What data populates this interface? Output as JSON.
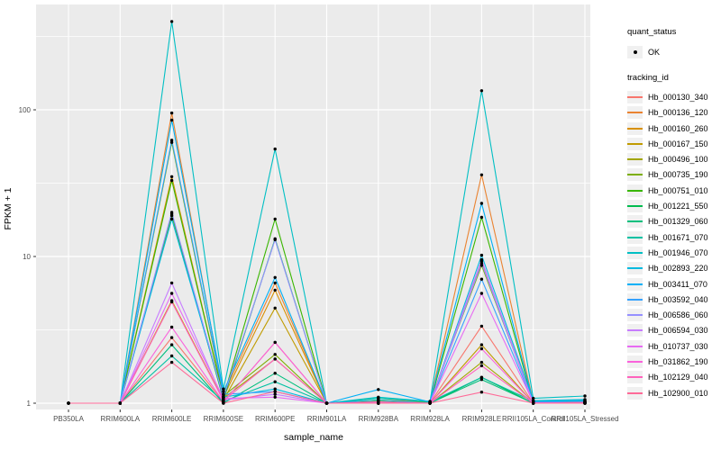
{
  "axes": {
    "x_title": "sample_name",
    "y_title": "FPKM + 1",
    "y_tick_labels": [
      "1",
      "10",
      "100"
    ]
  },
  "legend": {
    "quant_title": "quant_status",
    "quant_items": [
      {
        "label": "OK",
        "marker": "point"
      }
    ],
    "series_title": "tracking_id",
    "position": "right"
  },
  "chart_data": {
    "type": "line",
    "title": "",
    "xlabel": "sample_name",
    "ylabel": "FPKM + 1",
    "y_scale": "log10",
    "ylim": [
      0.93,
      487
    ],
    "grid": "major-and-minor-horizontal, major-vertical",
    "panel_bg": "#ebebeb",
    "gridline_color": "#ffffff",
    "point_color": "#000000",
    "y_major": [
      1,
      10,
      100
    ],
    "y_tick_labels": [
      "1",
      "10",
      "100"
    ],
    "y_minor": [
      3.162,
      31.62,
      316.2
    ],
    "x_categories": [
      "PB350LA",
      "RRIM600LA",
      "RRIM600LE",
      "RRIM600SE",
      "RRIM600PE",
      "RRIM901LA",
      "RRIM928BA",
      "RRIM928LA",
      "RRIM928LE",
      "RRII105LA_Control",
      "RRII105LA_Stressed"
    ],
    "series": [
      {
        "name": "Hb_000130_340",
        "color": "#F8766D",
        "values": [
          1,
          1,
          2.8,
          1.02,
          2.6,
          1,
          1,
          1,
          3.35,
          1,
          1
        ]
      },
      {
        "name": "Hb_000136_120",
        "color": "#EA8331",
        "values": [
          1,
          1,
          95,
          1.15,
          6.6,
          1,
          1.05,
          1.02,
          36,
          1.02,
          1.03
        ]
      },
      {
        "name": "Hb_000160_260",
        "color": "#D89000",
        "values": [
          1,
          1,
          35,
          1.1,
          5.9,
          1,
          1,
          1,
          9.3,
          1.01,
          1.02
        ]
      },
      {
        "name": "Hb_000167_150",
        "color": "#C09B00",
        "values": [
          1,
          1,
          5.0,
          1.05,
          4.45,
          1,
          1,
          1,
          2.5,
          1,
          1.01
        ]
      },
      {
        "name": "Hb_000496_100",
        "color": "#A3A500",
        "values": [
          1,
          1,
          19,
          1.08,
          2.0,
          1,
          1.02,
          1,
          1.9,
          1,
          1
        ]
      },
      {
        "name": "Hb_000735_190",
        "color": "#7CAE00",
        "values": [
          1,
          1,
          60,
          1.12,
          2.15,
          1,
          1,
          1.02,
          8.7,
          1.02,
          1.02
        ]
      },
      {
        "name": "Hb_000751_010",
        "color": "#39B600",
        "values": [
          1,
          1,
          33,
          1.1,
          18,
          1,
          1.03,
          1,
          18.5,
          1.01,
          1.02
        ]
      },
      {
        "name": "Hb_001221_550",
        "color": "#00BB4E",
        "values": [
          1,
          1,
          19.5,
          1.06,
          13.2,
          1,
          1,
          1,
          1.5,
          1,
          1.01
        ]
      },
      {
        "name": "Hb_001329_060",
        "color": "#00BF7D",
        "values": [
          1,
          1,
          2.5,
          1,
          1.6,
          1,
          1,
          1,
          1.45,
          1,
          1
        ]
      },
      {
        "name": "Hb_001671_070",
        "color": "#00C1A3",
        "values": [
          1,
          1,
          2.1,
          1.03,
          1.4,
          1,
          1.08,
          1.02,
          1.5,
          1.03,
          1.05
        ]
      },
      {
        "name": "Hb_001946_070",
        "color": "#00BFC4",
        "values": [
          1,
          1,
          400,
          1.25,
          54,
          1,
          1.1,
          1.03,
          135,
          1.08,
          1.12
        ]
      },
      {
        "name": "Hb_002893_220",
        "color": "#00BAE0",
        "values": [
          1,
          1,
          18,
          1.1,
          1.25,
          1,
          1.05,
          1,
          10.2,
          1.04,
          1.06
        ]
      },
      {
        "name": "Hb_003411_070",
        "color": "#00B0F6",
        "values": [
          1,
          1,
          85,
          1.2,
          7.2,
          1,
          1.24,
          1.02,
          23,
          1.02,
          1.04
        ]
      },
      {
        "name": "Hb_003592_040",
        "color": "#35A2FF",
        "values": [
          1,
          1,
          62,
          1.15,
          1.2,
          1,
          1,
          1,
          7.0,
          1.01,
          1.02
        ]
      },
      {
        "name": "Hb_006586_060",
        "color": "#9590FF",
        "values": [
          1,
          1,
          20,
          1.1,
          13.0,
          1,
          1.02,
          1,
          9.0,
          1,
          1.01
        ]
      },
      {
        "name": "Hb_006594_030",
        "color": "#C77CFF",
        "values": [
          1,
          1,
          6.6,
          1.05,
          1.15,
          1,
          1,
          1,
          9.5,
          1,
          1
        ]
      },
      {
        "name": "Hb_010737_030",
        "color": "#E76BF3",
        "values": [
          1,
          1,
          5.6,
          1.08,
          1.1,
          1,
          1,
          1,
          5.6,
          1.01,
          1.01
        ]
      },
      {
        "name": "Hb_031862_190",
        "color": "#FA62DB",
        "values": [
          1,
          1,
          3.3,
          1.02,
          2.6,
          1,
          1,
          1,
          2.35,
          1,
          1
        ]
      },
      {
        "name": "Hb_102129_040",
        "color": "#FF62BC",
        "values": [
          1,
          1,
          4.9,
          1.04,
          2.0,
          1,
          1.02,
          1,
          1.8,
          1,
          1.01
        ]
      },
      {
        "name": "Hb_102900_010",
        "color": "#FF6A98",
        "values": [
          1,
          1,
          1.9,
          1,
          1.2,
          1,
          1,
          1,
          1.19,
          1,
          1
        ]
      }
    ]
  }
}
